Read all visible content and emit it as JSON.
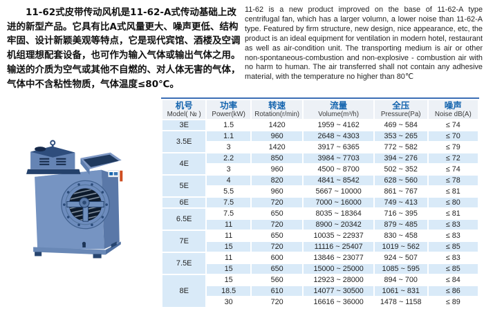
{
  "intro": {
    "chinese": "　　11-62式皮带传动风机是11-62-A式传动基础上改\n进的新型产品。它具有比A式风量更大、噪声更低、结构\n牢固、设计新颖美观等特点，它是现代宾馆、酒楼及空调\n机组理想配套设备，也可作为输入气体或输出气体之用。\n输送的介质为空气或其他不自燃的、对人体无害的气体，\n气体中不含粘性物质，气体温度≤80℃。",
    "english": "11-62 is a new product improved on the base of 11-62-A type centrifugal fan, which has a larger volumn, a lower noise than 11-62-A type. Featured by firm structure, new design, nice appearance, etc, the product is an ideal equipment for ventilation in modern hotel, restaurant as well as air-condition unit. The transporting medium is air or other non-spontaneous-combustion and non-explosive - combustion air with no harm to human. The air transferred shall not contain any adhesive material, with the temperature no higher than 80℃"
  },
  "product_image": {
    "alt": "11-62 type belt-driven centrifugal fan, blue housing with round inlet and top outlet"
  },
  "table": {
    "columns": [
      {
        "zh": "机号",
        "en": "Model( № )"
      },
      {
        "zh": "功率",
        "en": "Power(kW)"
      },
      {
        "zh": "转速",
        "en": "Rotation(r/min)"
      },
      {
        "zh": "流量",
        "en": "Volume(m³/h)"
      },
      {
        "zh": "全压",
        "en": "Pressure(Pa)"
      },
      {
        "zh": "噪声",
        "en": "Noise dB(A)"
      }
    ],
    "groups": [
      {
        "model": "3E",
        "rows": [
          [
            "1.5",
            "1420",
            "1959 ~ 4162",
            "469 ~ 584",
            "≤ 74"
          ]
        ]
      },
      {
        "model": "3.5E",
        "rows": [
          [
            "1.1",
            "960",
            "2648 ~ 4303",
            "353 ~ 265",
            "≤ 70"
          ],
          [
            "3",
            "1420",
            "3917 ~ 6365",
            "772 ~ 582",
            "≤ 79"
          ]
        ]
      },
      {
        "model": "4E",
        "rows": [
          [
            "2.2",
            "850",
            "3984 ~ 7703",
            "394 ~ 276",
            "≤ 72"
          ],
          [
            "3",
            "960",
            "4500 ~ 8700",
            "502 ~ 352",
            "≤ 74"
          ]
        ]
      },
      {
        "model": "5E",
        "rows": [
          [
            "4",
            "820",
            "4841 ~ 8542",
            "628 ~ 560",
            "≤ 78"
          ],
          [
            "5.5",
            "960",
            "5667 ~ 10000",
            "861 ~ 767",
            "≤ 81"
          ]
        ]
      },
      {
        "model": "6E",
        "rows": [
          [
            "7.5",
            "720",
            "7000 ~ 16000",
            "749 ~ 413",
            "≤ 80"
          ]
        ]
      },
      {
        "model": "6.5E",
        "rows": [
          [
            "7.5",
            "650",
            "8035 ~ 18364",
            "716 ~ 395",
            "≤ 81"
          ],
          [
            "11",
            "720",
            "8900 ~ 20342",
            "879 ~ 485",
            "≤ 83"
          ]
        ]
      },
      {
        "model": "7E",
        "rows": [
          [
            "11",
            "650",
            "10035 ~ 22937",
            "830 ~ 458",
            "≤ 83"
          ],
          [
            "15",
            "720",
            "11116 ~ 25407",
            "1019 ~ 562",
            "≤ 85"
          ]
        ]
      },
      {
        "model": "7.5E",
        "rows": [
          [
            "11",
            "600",
            "13846 ~ 23077",
            "924 ~ 507",
            "≤ 83"
          ],
          [
            "15",
            "650",
            "15000 ~ 25000",
            "1085 ~ 595",
            "≤ 85"
          ]
        ]
      },
      {
        "model": "8E",
        "rows": [
          [
            "15",
            "560",
            "12923 ~ 28000",
            "894 ~ 700",
            "≤ 84"
          ],
          [
            "18.5",
            "610",
            "14077 ~ 30500",
            "1061 ~ 831",
            "≤ 86"
          ],
          [
            "30",
            "720",
            "16616 ~ 36000",
            "1478 ~ 1158",
            "≤ 89"
          ]
        ]
      }
    ]
  },
  "colors": {
    "table_top_border": "#3a6db5",
    "header_bg": "#edf1f6",
    "header_zh_text": "#1464ae",
    "stripe_blue": "#d9eaf8",
    "body_text": "#1f1f1f",
    "fan_blue": "#7694c2"
  }
}
